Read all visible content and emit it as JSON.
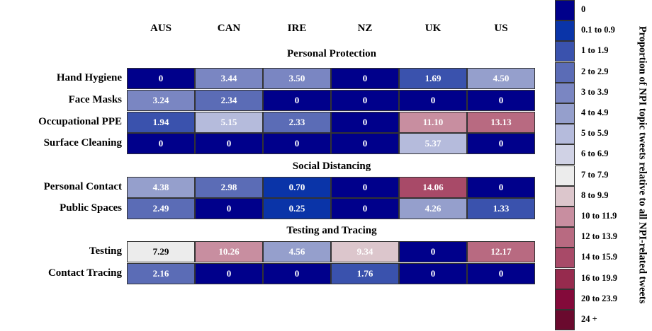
{
  "chart_data": {
    "type": "heatmap",
    "columns": [
      "AUS",
      "CAN",
      "IRE",
      "NZ",
      "UK",
      "US"
    ],
    "sections": [
      {
        "title": "Personal Protection",
        "rows": [
          {
            "label": "Hand Hygiene",
            "values": [
              "0",
              "3.44",
              "3.50",
              "0",
              "1.69",
              "4.50"
            ]
          },
          {
            "label": "Face Masks",
            "values": [
              "3.24",
              "2.34",
              "0",
              "0",
              "0",
              "0"
            ]
          },
          {
            "label": "Occupational PPE",
            "values": [
              "1.94",
              "5.15",
              "2.33",
              "0",
              "11.10",
              "13.13"
            ]
          },
          {
            "label": "Surface Cleaning",
            "values": [
              "0",
              "0",
              "0",
              "0",
              "5.37",
              "0"
            ]
          }
        ]
      },
      {
        "title": "Social Distancing",
        "rows": [
          {
            "label": "Personal Contact",
            "values": [
              "4.38",
              "2.98",
              "0.70",
              "0",
              "14.06",
              "0"
            ]
          },
          {
            "label": "Public Spaces",
            "values": [
              "2.49",
              "0",
              "0.25",
              "0",
              "4.26",
              "1.33"
            ]
          }
        ]
      },
      {
        "title": "Testing and Tracing",
        "rows": [
          {
            "label": "Testing",
            "values": [
              "7.29",
              "10.26",
              "4.56",
              "9.34",
              "0",
              "12.17"
            ]
          },
          {
            "label": "Contact Tracing",
            "values": [
              "2.16",
              "0",
              "0",
              "1.76",
              "0",
              "0"
            ]
          }
        ]
      }
    ],
    "legend": {
      "title": "Proportion of NPI topic tweets relative to all NPI-related tweets",
      "bins": [
        {
          "label": "0",
          "color": "#00008b"
        },
        {
          "label": "0.1 to  0.9",
          "color": "#0a34a8"
        },
        {
          "label": "1 to 1.9",
          "color": "#3a52ad"
        },
        {
          "label": "2 to 2.9",
          "color": "#5b6cb6"
        },
        {
          "label": "3 to 3.9",
          "color": "#7a86c2"
        },
        {
          "label": "4 to 4.9",
          "color": "#959fcc"
        },
        {
          "label": "5 to 5.9",
          "color": "#b5bbdc"
        },
        {
          "label": "6 to 6.9",
          "color": "#d0d2e5"
        },
        {
          "label": "7 to 7.9",
          "color": "#ececec"
        },
        {
          "label": "8 to 9.9",
          "color": "#dcc6cc"
        },
        {
          "label": "10 to 11.9",
          "color": "#c88ea0"
        },
        {
          "label": "12 to 13.9",
          "color": "#b86a81"
        },
        {
          "label": "14 to 15.9",
          "color": "#a84a68"
        },
        {
          "label": "16 to 19.9",
          "color": "#962b4e"
        },
        {
          "label": "20 to 23.9",
          "color": "#830a3a"
        },
        {
          "label": "24 +",
          "color": "#6a0a2e"
        }
      ]
    }
  }
}
